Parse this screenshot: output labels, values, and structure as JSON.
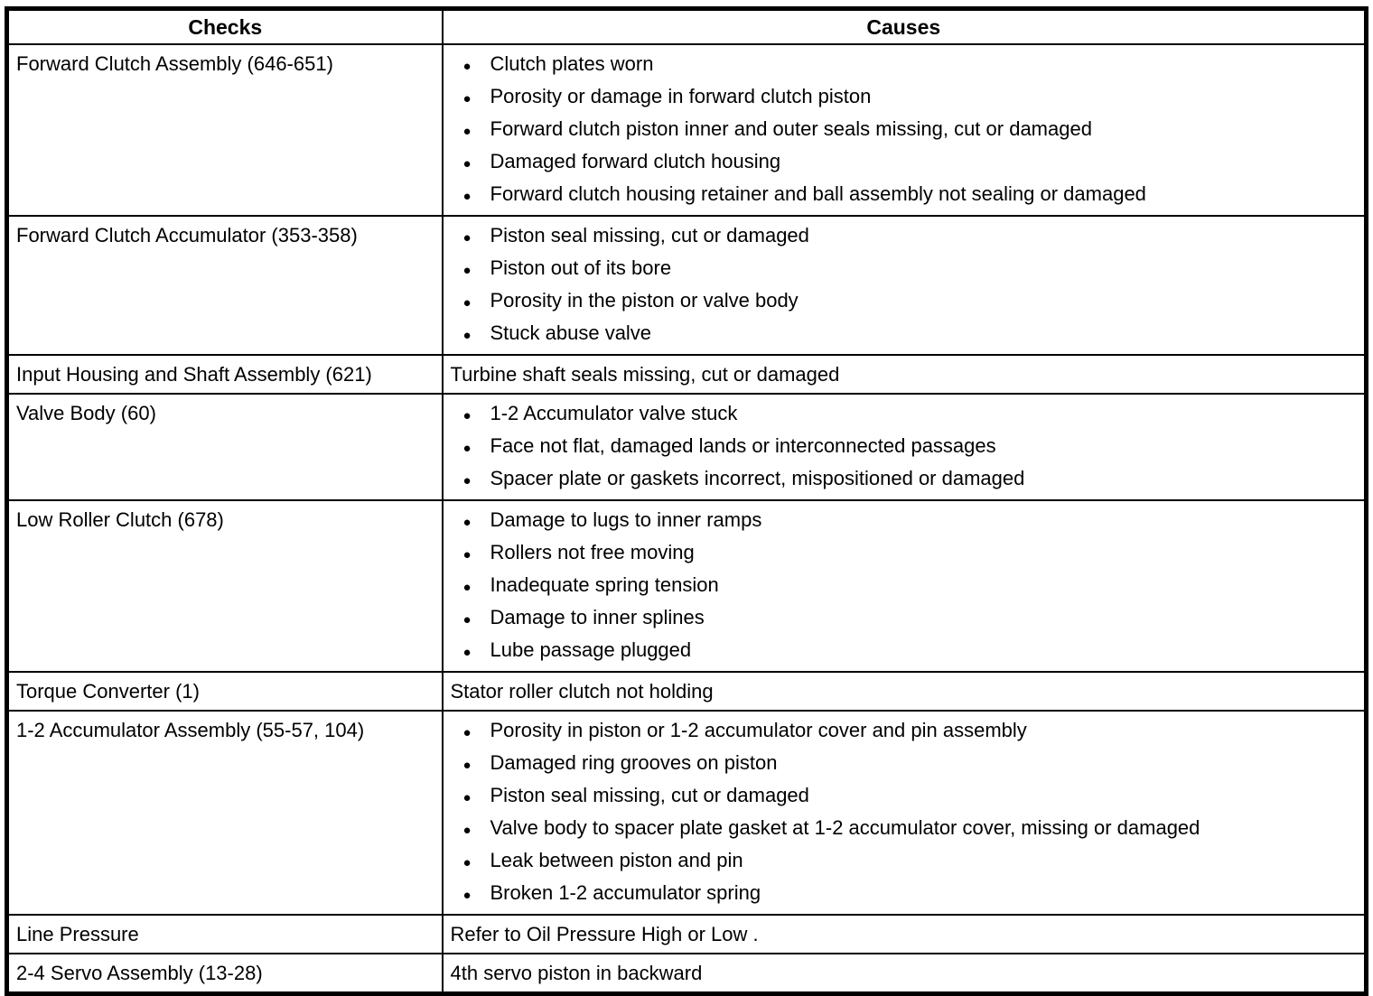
{
  "table": {
    "columns": [
      "Checks",
      "Causes"
    ],
    "bullet_glyph": "●",
    "colors": {
      "border": "#000000",
      "text": "#000000",
      "background": "#ffffff"
    },
    "rows": [
      {
        "check": "Forward Clutch Assembly (646-651)",
        "bulleted": true,
        "causes": [
          "Clutch plates worn",
          "Porosity or damage in forward clutch piston",
          "Forward clutch piston inner and outer seals missing, cut or damaged",
          "Damaged forward clutch housing",
          "Forward clutch housing retainer and ball assembly not sealing or damaged"
        ]
      },
      {
        "check": "Forward Clutch Accumulator (353-358)",
        "bulleted": true,
        "causes": [
          "Piston seal missing, cut or damaged",
          "Piston out of its bore",
          "Porosity in the piston or valve body",
          "Stuck abuse valve"
        ]
      },
      {
        "check": "Input Housing and Shaft Assembly (621)",
        "bulleted": false,
        "causes": [
          "Turbine shaft seals missing, cut or damaged"
        ]
      },
      {
        "check": "Valve Body (60)",
        "bulleted": true,
        "causes": [
          "1-2 Accumulator valve stuck",
          "Face not flat, damaged lands or interconnected passages",
          "Spacer plate or gaskets incorrect, mispositioned or damaged"
        ]
      },
      {
        "check": "Low Roller Clutch (678)",
        "bulleted": true,
        "causes": [
          "Damage to lugs to inner ramps",
          "Rollers not free moving",
          "Inadequate spring tension",
          "Damage to inner splines",
          "Lube passage plugged"
        ]
      },
      {
        "check": "Torque Converter (1)",
        "bulleted": false,
        "causes": [
          "Stator roller clutch not holding"
        ]
      },
      {
        "check": "1-2 Accumulator Assembly (55-57, 104)",
        "bulleted": true,
        "causes": [
          "Porosity in piston or 1-2 accumulator cover and pin assembly",
          "Damaged ring grooves on piston",
          "Piston seal missing, cut or damaged",
          "Valve body to spacer plate gasket at 1-2 accumulator cover, missing or damaged",
          "Leak between piston and pin",
          "Broken 1-2 accumulator spring"
        ]
      },
      {
        "check": "Line Pressure",
        "bulleted": false,
        "causes": [
          "Refer to Oil Pressure High or Low ."
        ]
      },
      {
        "check": "2-4 Servo Assembly (13-28)",
        "bulleted": false,
        "causes": [
          "4th servo piston in backward"
        ]
      }
    ]
  }
}
